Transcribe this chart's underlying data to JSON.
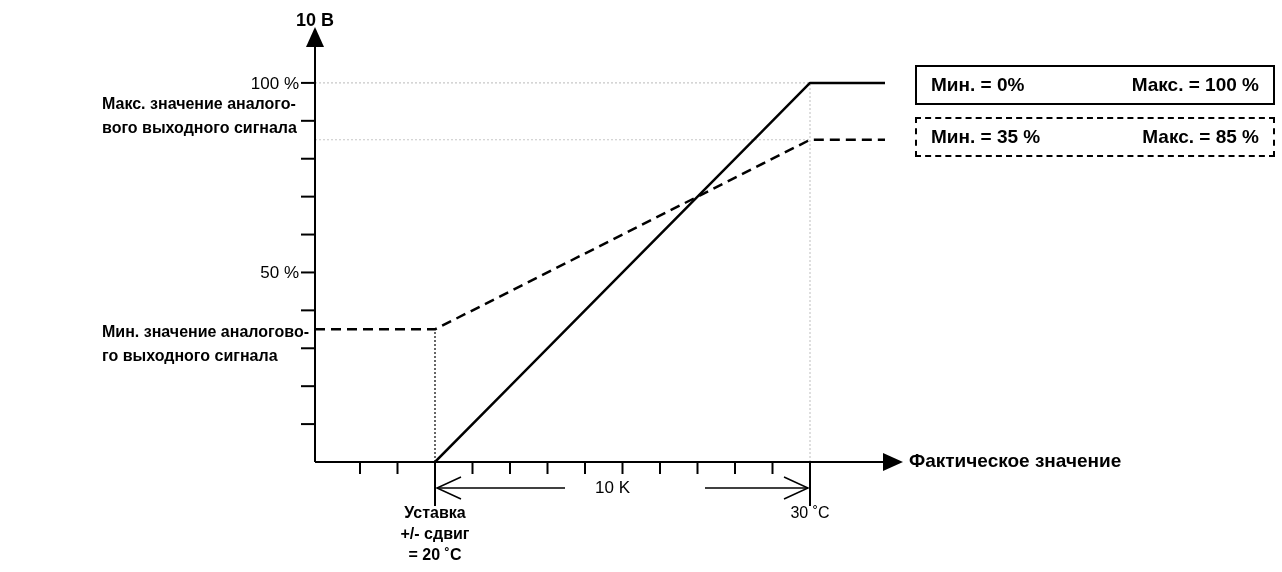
{
  "chart_data": {
    "type": "line",
    "ylabel": "10 В",
    "xlabel": "Фактическое значение",
    "xlim": [
      16.8,
      32
    ],
    "ylim": [
      0,
      110
    ],
    "xticks": [
      {
        "value": 18,
        "label": null
      },
      {
        "value": 19,
        "label": null
      },
      {
        "value": 20,
        "label": "Уставка\n+/- сдвиг\n= 20 ˚C"
      },
      {
        "value": 21,
        "label": null
      },
      {
        "value": 22,
        "label": null
      },
      {
        "value": 23,
        "label": null
      },
      {
        "value": 24,
        "label": null
      },
      {
        "value": 25,
        "label": null
      },
      {
        "value": 26,
        "label": null
      },
      {
        "value": 27,
        "label": null
      },
      {
        "value": 28,
        "label": null
      },
      {
        "value": 29,
        "label": null
      },
      {
        "value": 30,
        "label": "30 ˚C"
      }
    ],
    "yticks": [
      {
        "value": 10,
        "label": null
      },
      {
        "value": 20,
        "label": null
      },
      {
        "value": 30,
        "label": null
      },
      {
        "value": 40,
        "label": null
      },
      {
        "value": 50,
        "label": "50 %"
      },
      {
        "value": 60,
        "label": null
      },
      {
        "value": 70,
        "label": null
      },
      {
        "value": 80,
        "label": null
      },
      {
        "value": 90,
        "label": null
      },
      {
        "value": 100,
        "label": "100 %"
      }
    ],
    "series": [
      {
        "name": "Мин. = 0%   Макс. = 100 %",
        "color": "#000000",
        "line_style": "solid",
        "x": [
          20,
          30,
          32
        ],
        "values": [
          0,
          100,
          100
        ]
      },
      {
        "name": "Мин. = 35 %   Макс. = 85 %",
        "color": "#000000",
        "line_style": "dashed",
        "x": [
          16.8,
          20,
          30,
          32
        ],
        "values": [
          35,
          35,
          85,
          85
        ]
      }
    ],
    "ref_lines": [
      {
        "axis": "y",
        "value": 100,
        "color": "#c8c8c8",
        "line_style": "dotted"
      },
      {
        "axis": "y",
        "value": 85,
        "color": "#c8c8c8",
        "line_style": "dotted"
      },
      {
        "axis": "x",
        "value": 20,
        "color": "#000000",
        "line_style": "dotted"
      },
      {
        "axis": "x",
        "value": 30,
        "color": "#c8c8c8",
        "line_style": "dotted"
      }
    ],
    "annotations": [
      "Макс. значение аналого-\nвого выходного сигнала",
      "Мин. значение аналогово-\nго выходного сигнала",
      "10 K"
    ]
  }
}
